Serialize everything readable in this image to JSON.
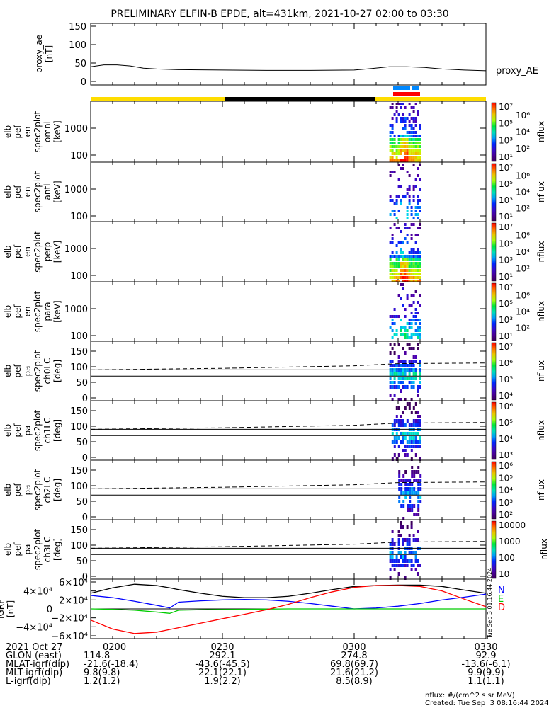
{
  "title": "PRELIMINARY ELFIN-B EPDE, alt=431km, 2021-10-27 02:00 to 03:30",
  "chart_data": [
    {
      "type": "line",
      "name": "proxy_ae",
      "ylabel": [
        "proxy_ae",
        "[nT]"
      ],
      "legend": "proxy_AE",
      "ylim": [
        0,
        150
      ],
      "yticks": [
        "0",
        "50",
        "100",
        "150"
      ],
      "x": [
        0,
        3,
        6,
        9,
        12,
        15,
        20,
        30,
        40,
        50,
        60,
        64,
        68,
        72,
        76,
        80,
        85,
        90
      ],
      "values": [
        40,
        45,
        45,
        42,
        36,
        34,
        32,
        31,
        30,
        30,
        31,
        35,
        40,
        40,
        38,
        34,
        31,
        29
      ]
    },
    {
      "type": "heatmap",
      "name": "omni",
      "ylabel": [
        "elb",
        "pef",
        "en",
        "spec2plot",
        "omni",
        "[keV]"
      ],
      "yticks": [
        "100",
        "1000"
      ],
      "cbar": [
        "10¹",
        "10²",
        "10³",
        "10⁴",
        "10⁵",
        "10⁶",
        "10⁷"
      ],
      "cbar_label": "nflux",
      "active_min": [
        68,
        75
      ],
      "strength": 1.0
    },
    {
      "type": "heatmap",
      "name": "anti",
      "ylabel": [
        "elb",
        "pef",
        "en",
        "spec2plot",
        "anti",
        "[keV]"
      ],
      "yticks": [
        "100",
        "1000"
      ],
      "cbar": [
        "10¹",
        "10²",
        "10³",
        "10⁴",
        "10⁵",
        "10⁶",
        "10⁷"
      ],
      "cbar_label": "nflux",
      "active_min": [
        68,
        75
      ],
      "strength": 0.45
    },
    {
      "type": "heatmap",
      "name": "perp",
      "ylabel": [
        "elb",
        "pef",
        "en",
        "spec2plot",
        "perp",
        "[keV]"
      ],
      "yticks": [
        "100",
        "1000"
      ],
      "cbar": [
        "10¹",
        "10²",
        "10³",
        "10⁴",
        "10⁵",
        "10⁶",
        "10⁷"
      ],
      "cbar_label": "nflux",
      "active_min": [
        68,
        75
      ],
      "strength": 1.0
    },
    {
      "type": "heatmap",
      "name": "para",
      "ylabel": [
        "elb",
        "pef",
        "en",
        "spec2plot",
        "para",
        "[keV]"
      ],
      "yticks": [
        "100",
        "1000"
      ],
      "cbar": [
        "10¹",
        "10²",
        "10³",
        "10⁴",
        "10⁵",
        "10⁶",
        "10⁷"
      ],
      "cbar_label": "nflux",
      "active_min": [
        68,
        75
      ],
      "strength": 0.55
    },
    {
      "type": "heatmap",
      "name": "ch0LC",
      "ylabel": [
        "elb",
        "pef",
        "pa",
        "spec2plot",
        "ch0LC",
        "[deg]"
      ],
      "yticks": [
        "0",
        "50",
        "100",
        "150"
      ],
      "cbar": [
        "10⁴",
        "10⁵",
        "10⁶",
        "10⁷"
      ],
      "cbar_label": "nflux",
      "active_min": [
        68,
        75
      ],
      "strength": 0.8
    },
    {
      "type": "heatmap",
      "name": "ch1LC",
      "ylabel": [
        "elb",
        "pef",
        "pa",
        "spec2plot",
        "ch1LC",
        "[deg]"
      ],
      "yticks": [
        "0",
        "50",
        "100",
        "150"
      ],
      "cbar": [
        "10³",
        "10⁴",
        "10⁵",
        "10⁶"
      ],
      "cbar_label": "nflux",
      "active_min": [
        69,
        75
      ],
      "strength": 0.7
    },
    {
      "type": "heatmap",
      "name": "ch2LC",
      "ylabel": [
        "elb",
        "pef",
        "pa",
        "spec2plot",
        "ch2LC",
        "[deg]"
      ],
      "yticks": [
        "0",
        "50",
        "100",
        "150"
      ],
      "cbar": [
        "10²",
        "10³",
        "10⁴",
        "10⁵",
        "10⁶"
      ],
      "cbar_label": "nflux",
      "active_min": [
        71,
        75
      ],
      "strength": 0.65
    },
    {
      "type": "heatmap",
      "name": "ch3LC",
      "ylabel": [
        "elb",
        "pef",
        "pa",
        "spec2plot",
        "ch3LC",
        "[deg]"
      ],
      "yticks": [
        "0",
        "50",
        "100",
        "150"
      ],
      "cbar": [
        "10",
        "100",
        "1000",
        "10000"
      ],
      "cbar_label": "nflux",
      "active_min": [
        68,
        75
      ],
      "strength": 0.6
    },
    {
      "type": "line",
      "name": "igrf",
      "ylabel": [
        "IGRF",
        "[nT]"
      ],
      "ylim": [
        -60000,
        60000
      ],
      "yticks": [
        "−6×10⁴",
        "−4×10⁴",
        "−2×10⁴",
        "0",
        "2×10⁴",
        "4×10⁴",
        "6×10⁴"
      ],
      "x": [
        0,
        5,
        10,
        15,
        18,
        20,
        25,
        30,
        35,
        40,
        45,
        50,
        55,
        60,
        65,
        70,
        75,
        80,
        85,
        90
      ],
      "series": [
        {
          "name": "total",
          "color": "#000000",
          "values": [
            35000,
            47000,
            55000,
            52000,
            47000,
            43000,
            35000,
            28000,
            25000,
            25000,
            28000,
            35000,
            43000,
            50000,
            52000,
            53000,
            53000,
            50000,
            42000,
            35000
          ]
        },
        {
          "name": "N",
          "color": "#0000ff",
          "values": [
            30000,
            25000,
            17000,
            8000,
            2000,
            15000,
            18000,
            20000,
            21000,
            20000,
            17000,
            12000,
            6000,
            0,
            2000,
            6000,
            12000,
            20000,
            26000,
            33000
          ]
        },
        {
          "name": "E",
          "color": "#00cc00",
          "values": [
            0,
            -1000,
            -3000,
            -7000,
            -10000,
            -3000,
            -2000,
            -1500,
            -1000,
            -500,
            0,
            0,
            0,
            0,
            0,
            0,
            0,
            0,
            0,
            0
          ]
        },
        {
          "name": "D",
          "color": "#ff0000",
          "values": [
            -25000,
            -45000,
            -55000,
            -52000,
            -46000,
            -42000,
            -32000,
            -22000,
            -12000,
            -2000,
            10000,
            25000,
            38000,
            48000,
            52000,
            52000,
            50000,
            40000,
            22000,
            5000
          ]
        }
      ],
      "legend": [
        "N",
        "E",
        "D"
      ]
    }
  ],
  "time_axis": {
    "labels": [
      "0200",
      "0230",
      "0300",
      "0330"
    ],
    "date": "2021 Oct 27"
  },
  "ephemeris": [
    {
      "label": "GLON (east)",
      "values": [
        "114.8",
        "292.1",
        "274.8",
        "92.9"
      ]
    },
    {
      "label": "MLAT-igrf(dip)",
      "values": [
        "-21.6(-18.4)",
        "-43.6(-45.5)",
        "69.8(69.7)",
        "-13.6(-6.1)"
      ]
    },
    {
      "label": "MLT-igrf(dip)",
      "values": [
        "9.8(9.8)",
        "22.1(22.1)",
        "21.6(21.2)",
        "9.9(9.9)"
      ]
    },
    {
      "label": "L-igrf(dip)",
      "values": [
        "1.2(1.2)",
        "1.9(2.2)",
        "8.5(8.9)",
        "1.1(1.1)"
      ]
    }
  ],
  "footer": {
    "units": "nflux: #/(cm^2 s sr MeV)",
    "created": "Created: Tue Sep  3 08:16:44 2024",
    "side_stamp": "Tue Sep  3 01:16:44 2024"
  },
  "colors": {
    "sunlit": "#ffdd00",
    "shadow": "#000000",
    "science_blue": "#0088ff",
    "science_red": "#ff0000"
  }
}
